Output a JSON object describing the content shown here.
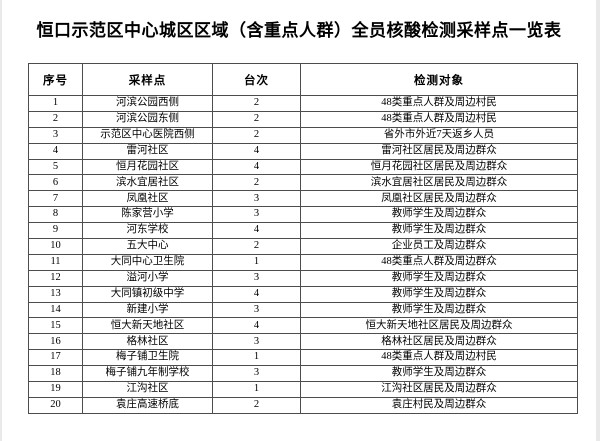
{
  "title": "恒口示范区中心城区区域（含重点人群）全员核酸检测采样点一览表",
  "table": {
    "headers": [
      "序号",
      "采样点",
      "台次",
      "检测对象"
    ],
    "rows": [
      [
        "1",
        "河滨公园西侧",
        "2",
        "48类重点人群及周边村民"
      ],
      [
        "2",
        "河滨公园东侧",
        "2",
        "48类重点人群及周边村民"
      ],
      [
        "3",
        "示范区中心医院西侧",
        "2",
        "省外市外近7天返乡人员"
      ],
      [
        "4",
        "雷河社区",
        "4",
        "雷河社区居民及周边群众"
      ],
      [
        "5",
        "恒月花园社区",
        "4",
        "恒月花园社区居民及周边群众"
      ],
      [
        "6",
        "滨水宜居社区",
        "2",
        "滨水宜居社区居民及周边群众"
      ],
      [
        "7",
        "凤凰社区",
        "3",
        "凤凰社区居民及周边群众"
      ],
      [
        "8",
        "陈家营小学",
        "3",
        "教师学生及周边群众"
      ],
      [
        "9",
        "河东学校",
        "4",
        "教师学生及周边群众"
      ],
      [
        "10",
        "五大中心",
        "2",
        "企业员工及周边群众"
      ],
      [
        "11",
        "大同中心卫生院",
        "1",
        "48类重点人群及周边群众"
      ],
      [
        "12",
        "溢河小学",
        "3",
        "教师学生及周边群众"
      ],
      [
        "13",
        "大同镇初级中学",
        "4",
        "教师学生及周边群众"
      ],
      [
        "14",
        "新建小学",
        "3",
        "教师学生及周边群众"
      ],
      [
        "15",
        "恒大新天地社区",
        "4",
        "恒大新天地社区居民及周边群众"
      ],
      [
        "16",
        "格林社区",
        "3",
        "格林社区居民及周边群众"
      ],
      [
        "17",
        "梅子铺卫生院",
        "1",
        "48类重点人群及周边村民"
      ],
      [
        "18",
        "梅子铺九年制学校",
        "3",
        "教师学生及周边群众"
      ],
      [
        "19",
        "江沟社区",
        "1",
        "江沟社区居民及周边群众"
      ],
      [
        "20",
        "袁庄高速桥底",
        "2",
        "袁庄村民及周边群众"
      ]
    ]
  }
}
